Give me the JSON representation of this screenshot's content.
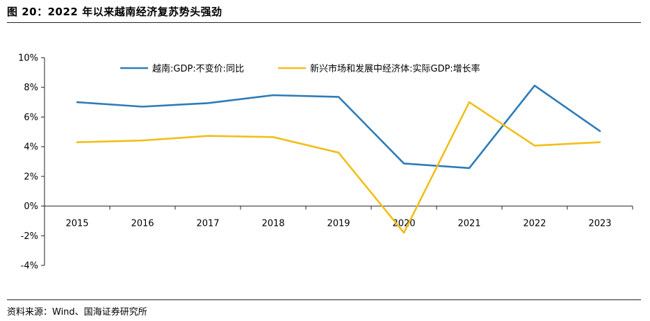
{
  "figure_title": "图 20：2022 年以来越南经济复苏势头强劲",
  "source_note": "资料来源：Wind、国海证券研究所",
  "colors": {
    "vietnam": "#2E7BB8",
    "emerging": "#F2BE1A",
    "axis": "#222222"
  },
  "chart_data": {
    "type": "line",
    "title": "",
    "xlabel": "",
    "ylabel": "",
    "x": [
      "2015",
      "2016",
      "2017",
      "2018",
      "2019",
      "2020",
      "2021",
      "2022",
      "2023"
    ],
    "ylim": [
      -4,
      10
    ],
    "yticks": [
      10,
      8,
      6,
      4,
      2,
      0,
      -2,
      -4
    ],
    "ytick_labels": [
      "10%",
      "8%",
      "6%",
      "4%",
      "2%",
      "0%",
      "-2%",
      "-4%"
    ],
    "legend_position": "top",
    "grid": false,
    "series": [
      {
        "name": "越南:GDP:不变价:同比",
        "color_key": "vietnam",
        "values": [
          7.0,
          6.7,
          6.94,
          7.47,
          7.36,
          2.87,
          2.56,
          8.12,
          5.05
        ]
      },
      {
        "name": "新兴市场和发展中经济体:实际GDP:增长率",
        "color_key": "emerging",
        "values": [
          4.3,
          4.42,
          4.73,
          4.65,
          3.6,
          -1.8,
          7.0,
          4.07,
          4.3
        ]
      }
    ]
  }
}
